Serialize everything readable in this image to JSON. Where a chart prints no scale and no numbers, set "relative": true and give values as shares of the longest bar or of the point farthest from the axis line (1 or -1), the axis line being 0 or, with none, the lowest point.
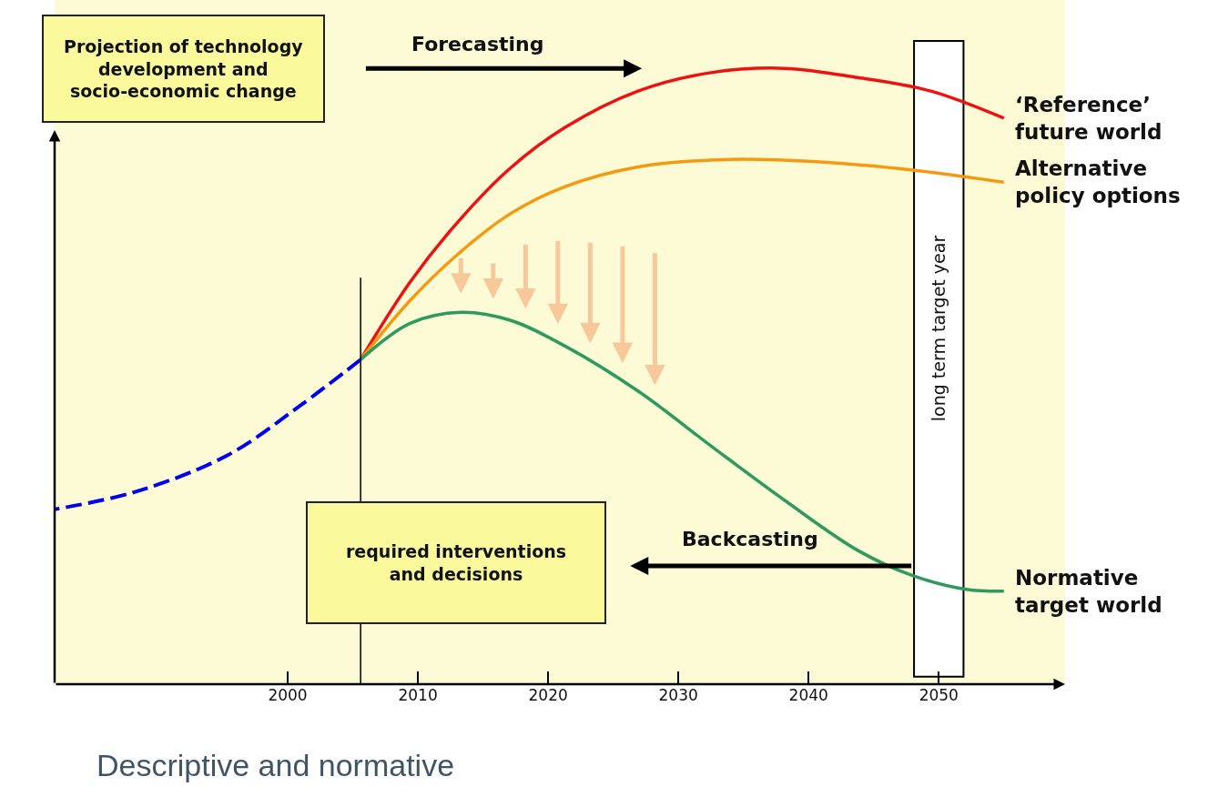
{
  "chart_data": {
    "type": "line",
    "relative": true,
    "xlim": [
      1982.1,
      2059.7
    ],
    "xticks": [
      2000,
      2010,
      2020,
      2030,
      2040,
      2050
    ],
    "grid": false,
    "legend": false,
    "tick_labels": "x",
    "series": [
      {
        "color": "#0000ee",
        "line_style": "dashed",
        "x": [
          1982.1,
          1988.4,
          1995.4,
          2001.0,
          2005.6
        ],
        "values": [
          0.284,
          0.313,
          0.372,
          0.453,
          0.527
        ]
      },
      {
        "name": "‘Reference’ future world",
        "color": "#ee1111",
        "x": [
          2005.6,
          2009.4,
          2013.0,
          2017.1,
          2021.3,
          2026.9,
          2032.5,
          2038.2,
          2043.8,
          2049.4,
          2055.0
        ],
        "values": [
          0.527,
          0.653,
          0.749,
          0.838,
          0.904,
          0.963,
          0.993,
          1.0,
          0.985,
          0.963,
          0.919
        ]
      },
      {
        "name": "Alternative policy options",
        "color": "#f59a10",
        "x": [
          2005.6,
          2009.4,
          2013.0,
          2017.1,
          2021.3,
          2026.9,
          2033.9,
          2040.9,
          2047.9,
          2055.0
        ],
        "values": [
          0.527,
          0.623,
          0.697,
          0.764,
          0.808,
          0.84,
          0.852,
          0.848,
          0.835,
          0.815
        ]
      },
      {
        "name": "Normative target world",
        "color": "#2e9a5e",
        "x": [
          2005.6,
          2009.4,
          2013.3,
          2017.1,
          2021.3,
          2026.9,
          2032.5,
          2038.2,
          2043.8,
          2047.9,
          2052.1,
          2055.0
        ],
        "values": [
          0.527,
          0.586,
          0.604,
          0.591,
          0.549,
          0.476,
          0.387,
          0.298,
          0.217,
          0.177,
          0.154,
          0.151
        ]
      },
      {
        "color": "#000000",
        "x": [
          2005.6,
          2005.6
        ],
        "values": [
          0,
          0.66
        ]
      }
    ],
    "bands": [
      {
        "axis": "x",
        "from": 2048.1,
        "to": 2051.9,
        "label": "long term target year",
        "color": "#ffffff"
      }
    ],
    "annotations": [
      "Projection of technology development and socio-economic change",
      "Forecasting",
      "required interventions and decisions",
      "Backcasting",
      "Descriptive and normative"
    ]
  }
}
